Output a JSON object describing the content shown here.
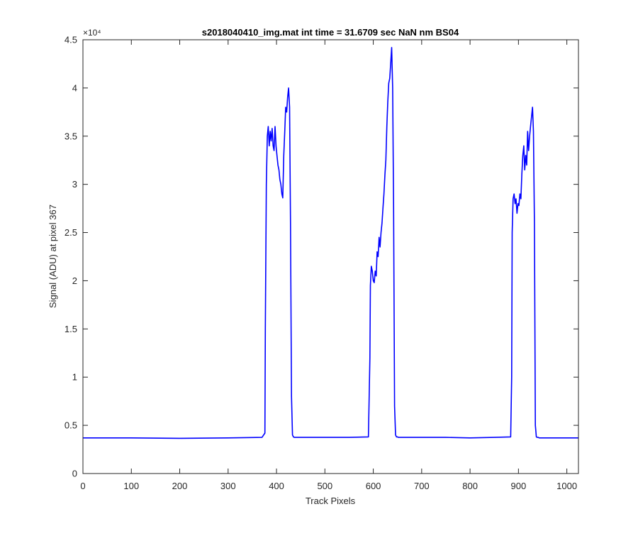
{
  "chart_data": {
    "type": "line",
    "title": "s2018040410_img.mat int time = 31.6709 sec  NaN nm BS04",
    "xlabel": "Track Pixels",
    "ylabel": "Signal (ADU) at pixel 367",
    "y_exponent_label": "×10⁴",
    "xlim": [
      0,
      1024
    ],
    "ylim": [
      0,
      45000
    ],
    "xticks": [
      0,
      100,
      200,
      300,
      400,
      500,
      600,
      700,
      800,
      900,
      1000
    ],
    "xtick_labels": [
      "0",
      "100",
      "200",
      "300",
      "400",
      "500",
      "600",
      "700",
      "800",
      "900",
      "1000"
    ],
    "yticks": [
      0,
      5000,
      10000,
      15000,
      20000,
      25000,
      30000,
      35000,
      40000,
      45000
    ],
    "ytick_labels": [
      "0",
      "0.5",
      "1",
      "1.5",
      "2",
      "2.5",
      "3",
      "3.5",
      "4",
      "4.5"
    ],
    "grid": false,
    "box": true,
    "series_color": "#0000ff",
    "series": [
      {
        "x": [
          0,
          100,
          200,
          300,
          370,
          376,
          377,
          379,
          381,
          383,
          385,
          387,
          389,
          391,
          393,
          395,
          397,
          399,
          401,
          403,
          405,
          407,
          409,
          411,
          413,
          415,
          417,
          419,
          421,
          423,
          425,
          427,
          429,
          431,
          433,
          435,
          437,
          439,
          441,
          443,
          446,
          450,
          500,
          550,
          590,
          593,
          594,
          596,
          598,
          600,
          602,
          604,
          606,
          608,
          610,
          612,
          614,
          616,
          618,
          620,
          622,
          624,
          626,
          628,
          630,
          632,
          634,
          636,
          638,
          640,
          642,
          644,
          646,
          648,
          650,
          652,
          654,
          656,
          658,
          660,
          700,
          750,
          800,
          850,
          884,
          886,
          887,
          889,
          891,
          893,
          895,
          897,
          899,
          901,
          903,
          905,
          907,
          909,
          911,
          913,
          915,
          917,
          919,
          921,
          923,
          925,
          927,
          929,
          931,
          933,
          935,
          937,
          939,
          941,
          943,
          945,
          947,
          949,
          951,
          953,
          960,
          1000,
          1024
        ],
        "y": [
          3700,
          3700,
          3650,
          3700,
          3750,
          4200,
          15000,
          30000,
          35000,
          36000,
          34000,
          35500,
          34500,
          35800,
          34000,
          33500,
          36000,
          34000,
          33000,
          32000,
          31500,
          30500,
          30000,
          29000,
          28600,
          33000,
          35500,
          38000,
          37500,
          39000,
          40000,
          38000,
          26000,
          8000,
          4000,
          3800,
          3750,
          3750,
          3750,
          3750,
          3750,
          3750,
          3750,
          3750,
          3800,
          12000,
          19500,
          21500,
          21000,
          20000,
          19800,
          21000,
          20500,
          23000,
          22500,
          24500,
          23500,
          25000,
          26000,
          27500,
          29000,
          31000,
          32500,
          36000,
          38500,
          40500,
          41000,
          42500,
          44200,
          40000,
          28000,
          7000,
          4000,
          3800,
          3800,
          3750,
          3750,
          3750,
          3750,
          3750,
          3750,
          3750,
          3700,
          3750,
          3800,
          10000,
          25000,
          28500,
          29000,
          28000,
          28500,
          27000,
          28000,
          27800,
          29000,
          28500,
          31000,
          33000,
          34000,
          31500,
          33000,
          32000,
          35500,
          33500,
          35000,
          36000,
          37000,
          38000,
          35500,
          26000,
          5000,
          3800,
          3750,
          3750,
          3700,
          3700,
          3700,
          3700,
          3700,
          3700,
          3700,
          3700,
          3700
        ]
      }
    ]
  }
}
